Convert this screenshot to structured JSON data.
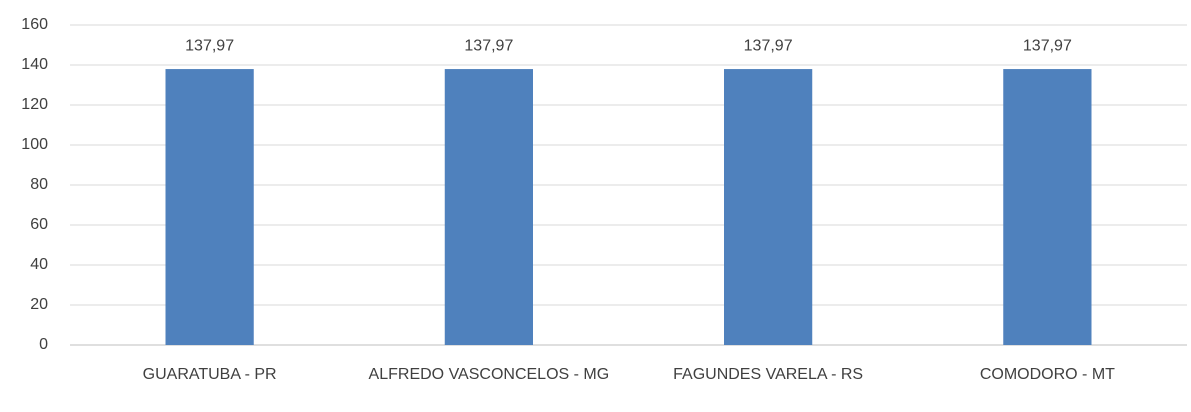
{
  "chart_data": {
    "type": "bar",
    "categories": [
      "GUARATUBA - PR",
      "ALFREDO VASCONCELOS - MG",
      "FAGUNDES VARELA - RS",
      "COMODORO - MT"
    ],
    "values": [
      137.97,
      137.97,
      137.97,
      137.97
    ],
    "value_labels": [
      "137,97",
      "137,97",
      "137,97",
      "137,97"
    ],
    "color": "#4f81bd",
    "ylim": [
      0,
      160
    ],
    "yticks": [
      0,
      20,
      40,
      60,
      80,
      100,
      120,
      140,
      160
    ],
    "grid": true
  }
}
